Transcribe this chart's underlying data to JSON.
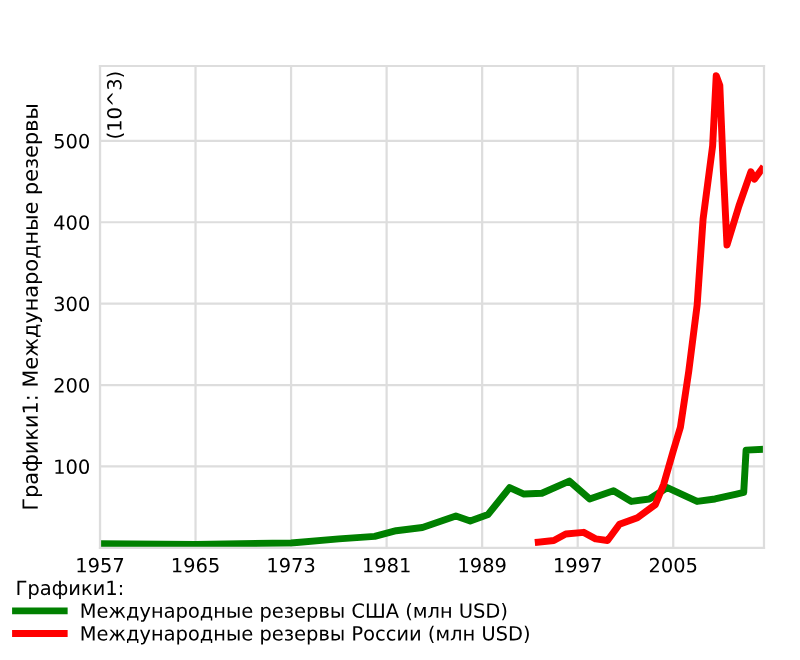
{
  "chart_data": {
    "type": "line",
    "ylabel": "Графики1: Международные резервы",
    "annotations": [
      "(10^3)"
    ],
    "legend_title": "Графики1:",
    "xlim": [
      1957,
      2012.6
    ],
    "xticks": [
      1957,
      1965,
      1973,
      1981,
      1989,
      1997,
      2005
    ],
    "ylim": [
      0,
      592
    ],
    "yticks": [
      100,
      200,
      300,
      400,
      500
    ],
    "grid": true,
    "legend": "bottom",
    "marker": "none",
    "line_style": "solid",
    "series": [
      {
        "name": "Международные резервы США (млн USD)",
        "color": "#008000",
        "x": [
          1957,
          1965,
          1973,
          1977,
          1980,
          1981.8,
          1984,
          1986.8,
          1988,
          1989.5,
          1991.3,
          1992.5,
          1994,
          1996.3,
          1998,
          2000,
          2001.5,
          2003,
          2004.5,
          2007,
          2008.5,
          2010.3,
          2010.9,
          2011.1,
          2012.4
        ],
        "values": [
          5,
          4,
          6,
          11,
          14,
          21,
          25,
          39,
          33,
          41,
          74,
          66,
          67,
          82,
          60,
          70,
          57,
          60,
          74,
          57,
          60,
          66,
          68,
          120,
          121
        ]
      },
      {
        "name": "Международные резервы России (млн USD)",
        "color": "#ff0000",
        "x": [
          1993.7,
          1995,
          1996,
          1997.5,
          1998.5,
          1999.5,
          2000.5,
          2002,
          2003.5,
          2004.2,
          2005,
          2005.6,
          2006.3,
          2007,
          2007.5,
          2008.3,
          2008.6,
          2008.9,
          2009.2,
          2009.5,
          2010,
          2010.5,
          2011.5,
          2011.8,
          2012.4
        ],
        "values": [
          7,
          9,
          17,
          19,
          11,
          9,
          29,
          37,
          53,
          78,
          119,
          148,
          217,
          298,
          404,
          494,
          580,
          568,
          462,
          372,
          396,
          420,
          462,
          453,
          465
        ]
      }
    ]
  }
}
